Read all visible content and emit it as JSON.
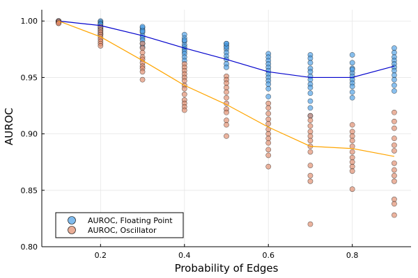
{
  "chart_data": {
    "type": "scatter",
    "title": "",
    "xlabel": "Probability of Edges",
    "ylabel": "AUROC",
    "xlim": [
      0.06,
      0.94
    ],
    "ylim": [
      0.8,
      1.01
    ],
    "xticks": [
      0.2,
      0.4,
      0.6,
      0.8
    ],
    "yticks": [
      0.8,
      0.85,
      0.9,
      0.95,
      1.0
    ],
    "xtick_labels": [
      "0.2",
      "0.4",
      "0.6",
      "0.8"
    ],
    "ytick_labels": [
      "0.80",
      "0.85",
      "0.90",
      "0.95",
      "1.00"
    ],
    "grid": true,
    "legend_position": "bottom-left",
    "series": [
      {
        "name": "AUROC, Floating Point",
        "color": "#4a9ee6",
        "line_color": "#0000cc",
        "x": [
          0.1,
          0.2,
          0.3,
          0.4,
          0.5,
          0.6,
          0.7,
          0.8,
          0.9
        ],
        "points": [
          [
            1.0,
            1.0,
            1.0,
            0.999,
            0.999,
            1.0,
            0.999,
            1.0
          ],
          [
            1.0,
            0.999,
            0.998,
            0.997,
            0.995,
            0.993,
            0.991,
            0.989,
            0.988,
            0.997,
            0.994
          ],
          [
            0.994,
            0.992,
            0.99,
            0.987,
            0.985,
            0.983,
            0.98,
            0.977,
            0.991,
            0.995
          ],
          [
            0.988,
            0.985,
            0.982,
            0.979,
            0.977,
            0.975,
            0.973,
            0.971,
            0.968,
            0.965,
            0.983
          ],
          [
            0.98,
            0.978,
            0.975,
            0.972,
            0.969,
            0.966,
            0.962,
            0.959,
            0.977,
            0.98
          ],
          [
            0.971,
            0.968,
            0.965,
            0.962,
            0.959,
            0.956,
            0.953,
            0.95,
            0.947,
            0.944,
            0.94,
            0.933
          ],
          [
            0.97,
            0.967,
            0.963,
            0.958,
            0.955,
            0.951,
            0.948,
            0.944,
            0.941,
            0.936,
            0.929,
            0.923,
            0.916
          ],
          [
            0.97,
            0.963,
            0.958,
            0.954,
            0.951,
            0.948,
            0.945,
            0.942,
            0.937,
            0.932,
            0.957
          ],
          [
            0.976,
            0.972,
            0.968,
            0.965,
            0.962,
            0.959,
            0.956,
            0.952,
            0.948,
            0.943,
            0.938
          ]
        ],
        "trend": [
          1.0,
          0.996,
          0.987,
          0.976,
          0.966,
          0.955,
          0.95,
          0.95,
          0.96
        ]
      },
      {
        "name": "AUROC, Oscillator",
        "color": "#e08a6a",
        "line_color": "#ffa500",
        "x": [
          0.1,
          0.2,
          0.3,
          0.4,
          0.5,
          0.6,
          0.7,
          0.8,
          0.9
        ],
        "points": [
          [
            1.0,
            0.999,
            0.998,
            0.998
          ],
          [
            0.995,
            0.992,
            0.99,
            0.988,
            0.986,
            0.984,
            0.982,
            0.98,
            0.978
          ],
          [
            0.98,
            0.976,
            0.972,
            0.968,
            0.966,
            0.963,
            0.96,
            0.958,
            0.955,
            0.948
          ],
          [
            0.962,
            0.959,
            0.956,
            0.953,
            0.95,
            0.947,
            0.943,
            0.94,
            0.935,
            0.93,
            0.927,
            0.924,
            0.921
          ],
          [
            0.951,
            0.948,
            0.945,
            0.941,
            0.937,
            0.932,
            0.927,
            0.922,
            0.919,
            0.912,
            0.908,
            0.898
          ],
          [
            0.927,
            0.923,
            0.918,
            0.913,
            0.909,
            0.904,
            0.9,
            0.896,
            0.892,
            0.886,
            0.881,
            0.871
          ],
          [
            0.916,
            0.912,
            0.907,
            0.902,
            0.898,
            0.894,
            0.889,
            0.884,
            0.872,
            0.863,
            0.858,
            0.82
          ],
          [
            0.908,
            0.902,
            0.898,
            0.894,
            0.889,
            0.884,
            0.879,
            0.875,
            0.871,
            0.867,
            0.851
          ],
          [
            0.919,
            0.911,
            0.905,
            0.896,
            0.89,
            0.885,
            0.874,
            0.868,
            0.863,
            0.858,
            0.842,
            0.838,
            0.828
          ]
        ],
        "trend": [
          1.0,
          0.986,
          0.965,
          0.943,
          0.926,
          0.906,
          0.889,
          0.887,
          0.88
        ]
      }
    ]
  }
}
